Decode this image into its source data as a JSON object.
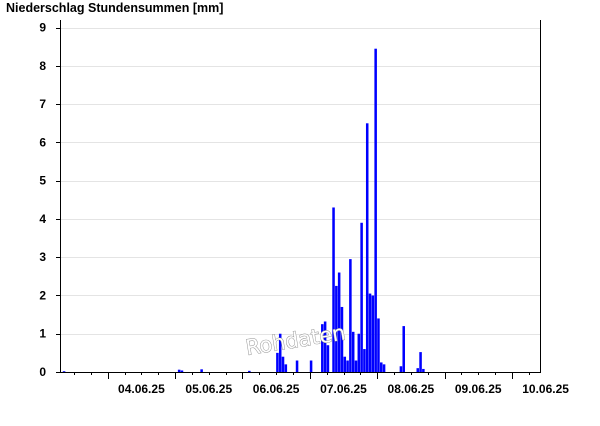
{
  "chart_data": {
    "type": "bar",
    "title": "Niederschlag Stundensummen [mm]",
    "xlabel": "",
    "ylabel": "",
    "ylim": [
      0,
      9.2
    ],
    "y_ticks": [
      0,
      1,
      2,
      3,
      4,
      5,
      6,
      7,
      8,
      9
    ],
    "x_start": "03.06.25 07:00",
    "x_end": "10.06.25 10:00",
    "x_ticks": [
      "04.06.25",
      "05.06.25",
      "06.06.25",
      "07.06.25",
      "08.06.25",
      "09.06.25",
      "10.06.25"
    ],
    "grid": true,
    "bar_color": "#0000ff",
    "watermark": "Rohdaten",
    "bars": [
      {
        "t": "03.06.25 08:00",
        "v": 0.02
      },
      {
        "t": "05.06.25 01:00",
        "v": 0.06
      },
      {
        "t": "05.06.25 02:00",
        "v": 0.04
      },
      {
        "t": "05.06.25 09:00",
        "v": 0.07
      },
      {
        "t": "06.06.25 02:00",
        "v": 0.03
      },
      {
        "t": "06.06.25 12:00",
        "v": 0.5
      },
      {
        "t": "06.06.25 13:00",
        "v": 1.0
      },
      {
        "t": "06.06.25 14:00",
        "v": 0.4
      },
      {
        "t": "06.06.25 15:00",
        "v": 0.2
      },
      {
        "t": "06.06.25 19:00",
        "v": 0.3
      },
      {
        "t": "07.06.25 00:00",
        "v": 0.3
      },
      {
        "t": "07.06.25 04:00",
        "v": 1.25
      },
      {
        "t": "07.06.25 05:00",
        "v": 1.32
      },
      {
        "t": "07.06.25 06:00",
        "v": 0.7
      },
      {
        "t": "07.06.25 08:00",
        "v": 4.3
      },
      {
        "t": "07.06.25 09:00",
        "v": 2.25
      },
      {
        "t": "07.06.25 10:00",
        "v": 2.6
      },
      {
        "t": "07.06.25 11:00",
        "v": 1.7
      },
      {
        "t": "07.06.25 12:00",
        "v": 0.4
      },
      {
        "t": "07.06.25 13:00",
        "v": 0.3
      },
      {
        "t": "07.06.25 14:00",
        "v": 2.95
      },
      {
        "t": "07.06.25 15:00",
        "v": 1.05
      },
      {
        "t": "07.06.25 16:00",
        "v": 0.3
      },
      {
        "t": "07.06.25 17:00",
        "v": 1.0
      },
      {
        "t": "07.06.25 18:00",
        "v": 3.9
      },
      {
        "t": "07.06.25 19:00",
        "v": 0.6
      },
      {
        "t": "07.06.25 20:00",
        "v": 6.5
      },
      {
        "t": "07.06.25 21:00",
        "v": 2.05
      },
      {
        "t": "07.06.25 22:00",
        "v": 2.0
      },
      {
        "t": "07.06.25 23:00",
        "v": 8.45
      },
      {
        "t": "08.06.25 00:00",
        "v": 1.4
      },
      {
        "t": "08.06.25 01:00",
        "v": 0.25
      },
      {
        "t": "08.06.25 02:00",
        "v": 0.2
      },
      {
        "t": "08.06.25 08:00",
        "v": 0.15
      },
      {
        "t": "08.06.25 09:00",
        "v": 1.2
      },
      {
        "t": "08.06.25 14:00",
        "v": 0.1
      },
      {
        "t": "08.06.25 15:00",
        "v": 0.52
      },
      {
        "t": "08.06.25 16:00",
        "v": 0.08
      }
    ]
  }
}
